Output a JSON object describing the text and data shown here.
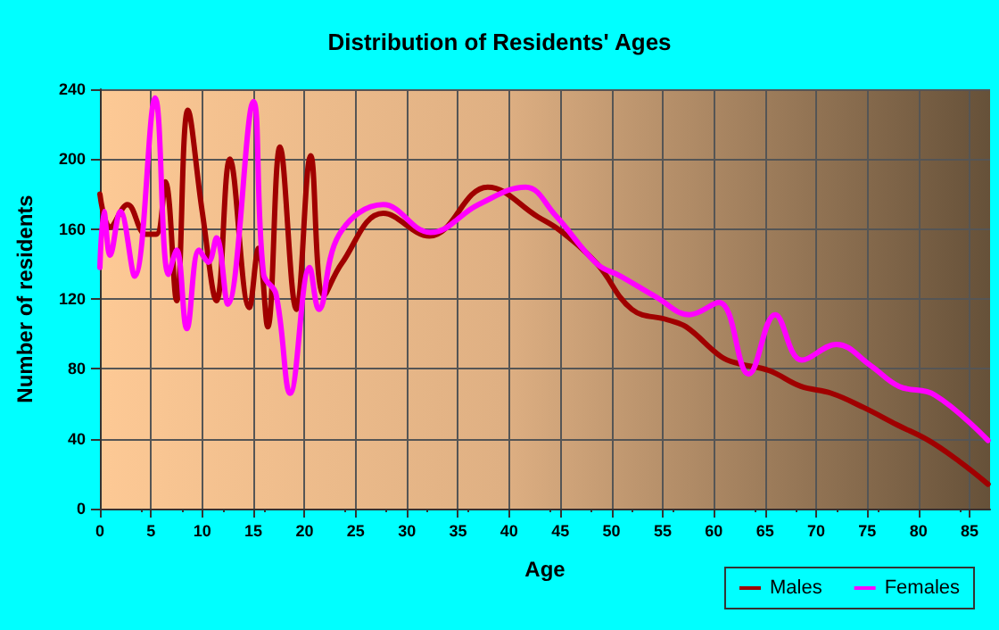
{
  "chart_data": {
    "type": "line",
    "title": "Distribution of Residents' Ages",
    "xlabel": "Age",
    "ylabel": "Number of residents",
    "xlim": [
      0,
      87
    ],
    "xticks": [
      0,
      5,
      10,
      15,
      20,
      25,
      30,
      35,
      40,
      45,
      50,
      55,
      60,
      65,
      70,
      75,
      80,
      85
    ],
    "ylim": [
      0,
      240
    ],
    "yticks": [
      0,
      40,
      80,
      120,
      160,
      200,
      240
    ],
    "grid": true,
    "legend": "bottom right",
    "marker": "none",
    "line_style": "solid",
    "series": [
      {
        "name": "Males",
        "color": "#a00000",
        "x": [
          0,
          1,
          2.7,
          4.5,
          5.5,
          6.4,
          7.5,
          8.6,
          10,
          11.4,
          12.7,
          14.6,
          15.5,
          16.4,
          17.6,
          19.2,
          20.6,
          21.9,
          23.6,
          27.7,
          32.2,
          37.9,
          42.8,
          45,
          48.6,
          52,
          55.5,
          57.3,
          60.7,
          62.4,
          65.4,
          68.5,
          71.5,
          74.6,
          77.9,
          81,
          84,
          86.8
        ],
        "values": [
          180,
          161,
          174,
          157,
          157,
          187,
          119,
          228,
          170,
          119,
          200,
          115,
          149,
          104,
          207,
          114,
          202,
          122,
          140,
          169,
          156,
          184,
          167,
          159,
          140,
          114,
          108,
          104,
          87,
          83,
          79,
          70,
          66,
          58,
          48,
          39,
          27,
          14
        ]
      },
      {
        "name": "Females",
        "color": "#ff00ff",
        "x": [
          0,
          0.4,
          1,
          2,
          3.4,
          5.4,
          6.7,
          7.5,
          8.5,
          9.7,
          10.6,
          11.4,
          12.5,
          15,
          16,
          17.2,
          18.6,
          20.5,
          21.4,
          23.4,
          27.7,
          32.3,
          37,
          41.6,
          44.5,
          48.6,
          50.9,
          54.4,
          57.6,
          60.5,
          63.4,
          66,
          68.6,
          72,
          75.3,
          78.1,
          81.6,
          86.8
        ],
        "values": [
          138,
          170,
          145,
          170,
          133,
          235,
          134,
          148,
          103,
          148,
          141,
          155,
          117,
          233,
          134,
          123,
          66,
          138,
          114,
          157,
          174,
          158,
          174,
          184,
          168,
          140,
          133,
          121,
          111,
          118,
          77,
          111,
          85,
          94,
          82,
          70,
          65,
          39
        ]
      }
    ]
  }
}
